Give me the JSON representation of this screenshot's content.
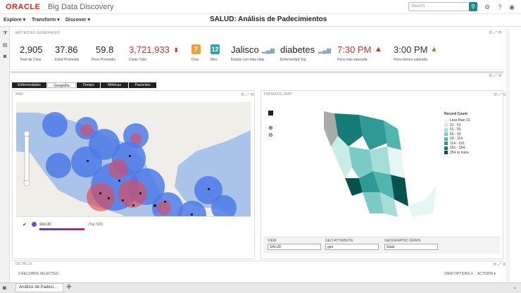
{
  "app": {
    "vendor": "ORACLE",
    "product": "Big Data Discovery",
    "page_title": "SALUD: Análisis de Padecimientos"
  },
  "search": {
    "placeholder": "Search"
  },
  "menu": {
    "explore": "Explore ▾",
    "transform": "Transform ▾",
    "discover": "Discover ▾"
  },
  "metrics": {
    "title": "MÉTRICAS GENERALES",
    "items": [
      {
        "value": "2,905",
        "label": "Total de Citas"
      },
      {
        "value": "37.86",
        "label": "Edad Promedio"
      },
      {
        "value": "59.8",
        "label": "Peso Promedio"
      },
      {
        "value": "3,721,933",
        "label": "Costo Total"
      },
      {
        "value": "7",
        "label": "Días"
      },
      {
        "value": "12",
        "label": "Mes"
      },
      {
        "value": "Jalisco",
        "label": "Estado con más citas"
      },
      {
        "value": "diabetes",
        "label": "Enfermedad Top"
      },
      {
        "value": "7:30 PM",
        "label": "Hora más saturada"
      },
      {
        "value": "3:00 PM",
        "label": "Hora menos saturada"
      }
    ]
  },
  "tabs": [
    "Enfermedades",
    "Geografía",
    "Tiempo",
    "Métricas",
    "Pacientes"
  ],
  "map": {
    "title": "MAP",
    "legend_label": "SALUD",
    "legend_note": "(Top 500)"
  },
  "thematic": {
    "title": "THEMATIC MAP",
    "legend_title": "Record Count",
    "legend": [
      "Less than 31",
      "31 - 51",
      "51 - 65",
      "65 - 93",
      "93 - 114",
      "114 - 161",
      "161 - 254",
      "254 or more"
    ],
    "legend_colors": [
      "#e6f6f4",
      "#c9ece8",
      "#a6ddd9",
      "#7dcbc6",
      "#52b4ae",
      "#2f9a93",
      "#157c76",
      "#06524f"
    ],
    "fields": {
      "view_label": "VIEW",
      "view_value": "SALUD",
      "geo_label": "GEO ATTRIBUTE",
      "geo_value": "geo",
      "grain_label": "GEOGRAPHIC GRAIN",
      "grain_value": "State"
    }
  },
  "details": {
    "title": "DETALLE",
    "records": "0 RECORDS SELECTED",
    "view_options": "VIEW OPTIONS ▾",
    "actions": "ACTIONS ▾"
  },
  "taskbar": {
    "tab": "Análisis de Padeci..."
  }
}
